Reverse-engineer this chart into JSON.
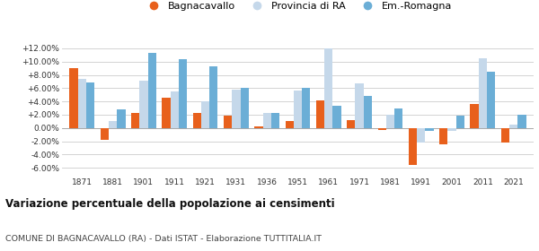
{
  "years": [
    1871,
    1881,
    1901,
    1911,
    1921,
    1931,
    1936,
    1951,
    1961,
    1971,
    1981,
    1991,
    2001,
    2011,
    2021
  ],
  "bagnacavallo": [
    9.0,
    -1.8,
    2.2,
    4.5,
    2.3,
    1.8,
    0.3,
    1.0,
    4.1,
    1.2,
    -0.3,
    -5.6,
    -2.5,
    3.6,
    -2.2
  ],
  "provincia_ra": [
    7.4,
    1.1,
    7.1,
    5.5,
    4.0,
    5.8,
    2.3,
    5.6,
    12.0,
    6.7,
    2.0,
    -2.2,
    -0.4,
    10.5,
    0.5
  ],
  "emilia_romagna": [
    6.9,
    2.8,
    11.3,
    10.4,
    9.3,
    6.1,
    2.2,
    6.1,
    3.3,
    4.8,
    2.9,
    -0.5,
    1.9,
    8.5,
    2.0
  ],
  "color_bagnacavallo": "#E8601C",
  "color_provincia": "#C5D8EA",
  "color_emilia": "#6BAED6",
  "title": "Variazione percentuale della popolazione ai censimenti",
  "subtitle": "COMUNE DI BAGNACAVALLO (RA) - Dati ISTAT - Elaborazione TUTTITALIA.IT",
  "ylim": [
    -7.2,
    14.0
  ],
  "yticks": [
    -6,
    -4,
    -2,
    0,
    2,
    4,
    6,
    8,
    10,
    12
  ],
  "background_color": "#ffffff",
  "grid_color": "#cccccc"
}
